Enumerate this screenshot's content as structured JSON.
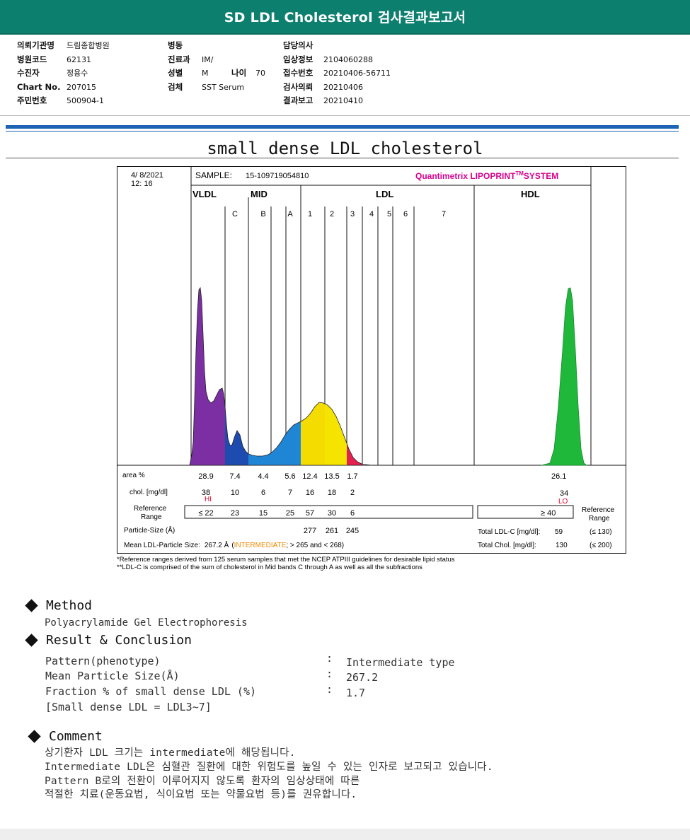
{
  "header": {
    "title": "SD LDL Cholesterol 검사결과보고서"
  },
  "patient": {
    "col1": [
      {
        "label": "의뢰기관명",
        "value": "드림종합병원"
      },
      {
        "label": "병원코드",
        "value": "62131"
      },
      {
        "label": "수진자",
        "value": "정용수"
      },
      {
        "label": "Chart No.",
        "value": "207015"
      },
      {
        "label": "주민번호",
        "value": "500904-1"
      }
    ],
    "col2": [
      {
        "label": "병동",
        "value": ""
      },
      {
        "label": "진료과",
        "value": "IM/"
      },
      {
        "label": "성별",
        "value": "M"
      },
      {
        "label": "검체",
        "value": "SST Serum"
      }
    ],
    "age": {
      "label": "나이",
      "value": "70"
    },
    "col3": [
      {
        "label": "담당의사",
        "value": ""
      },
      {
        "label": "임상정보",
        "value": "2104060288"
      },
      {
        "label": "접수번호",
        "value": "20210406-56711"
      },
      {
        "label": "검사의뢰",
        "value": "20210406"
      },
      {
        "label": "결과보고",
        "value": "20210410"
      }
    ]
  },
  "graph_title": "small dense LDL cholesterol",
  "report": {
    "date": "4/  8/2021",
    "time": "12: 16",
    "sample_label": "SAMPLE:",
    "sample_id": "15-109719054810",
    "system": "Quantimetrix LIPOPRINT",
    "system_tm": "TM",
    "system_suffix": "SYSTEM",
    "groups": {
      "vldl": "VLDL",
      "mid": "MID",
      "ldl": "LDL",
      "hdl": "HDL"
    },
    "bands": [
      "C",
      "B",
      "A",
      "1",
      "2",
      "3",
      "4",
      "5",
      "6",
      "7"
    ],
    "row_labels": {
      "area": "area %",
      "chol": "chol. [mg/dl]",
      "ref1": "Reference",
      "ref2": "Range",
      "particle": "Particle-Size (Å)",
      "mean": "Mean LDL-Particle Size:"
    },
    "area_values": [
      "28.9",
      "7.4",
      "4.4",
      "5.6",
      "12.4",
      "13.5",
      "1.7"
    ],
    "hdl_area": "26.1",
    "chol_values": [
      "38",
      "10",
      "6",
      "7",
      "16",
      "18",
      "2"
    ],
    "vldl_flag": "HI",
    "hdl_chol": "34",
    "hdl_flag": "LO",
    "ref_values": [
      "≤ 22",
      "23",
      "15",
      "25",
      "57",
      "30",
      "6"
    ],
    "hdl_ref": "≥ 40",
    "ref_right1": "Reference",
    "ref_right2": "Range",
    "particle_values": [
      "277",
      "261",
      "245"
    ],
    "total_ldl_label": "Total LDL-C [mg/dl]:",
    "total_ldl_value": "59",
    "total_ldl_ref": "(≤ 130)",
    "mean_value": "267.2 Å",
    "mean_class": "INTERMEDIATE",
    "mean_range_pre": "(",
    "mean_range": "; > 265 and < 268)",
    "total_chol_label": "Total Chol. [mg/dl]:",
    "total_chol_value": "130",
    "total_chol_ref": "(≤ 200)",
    "footnote1": "*Reference ranges derived from 125 serum samples that met the NCEP ATPIII guidelines for desirable lipid status",
    "footnote2": "**LDL-C is comprised of the sum of cholesterol in Mid bands C through A as well as all the subfractions",
    "colors": {
      "vldl": "#7b2fa3",
      "midc": "#1e4bb0",
      "midba": "#1f86d6",
      "ldl1": "#f5dc00",
      "ldl2": "#f4e400",
      "ldl3": "#e4204f",
      "hdl": "#1fb83a",
      "brand": "#d4008c"
    }
  },
  "method": {
    "heading": "Method",
    "text": "Polyacrylamide Gel Electrophoresis"
  },
  "result": {
    "heading": "Result & Conclusion",
    "rows": [
      {
        "label": "Pattern(phenotype)",
        "value": "Intermediate type"
      },
      {
        "label": "Mean Particle Size(Å)",
        "value": "267.2"
      },
      {
        "label": "Fraction % of small dense LDL (%)",
        "value": "1.7"
      }
    ],
    "note": "[Small dense LDL = LDL3~7]",
    "colon": ":"
  },
  "comment": {
    "heading": "Comment",
    "lines": [
      "상기환자 LDL 크기는 intermediate에 해당됩니다.",
      "Intermediate LDL은 심혈관 질환에 대한 위험도를 높일 수 있는 인자로 보고되고 있습니다.",
      "Pattern B로의 전환이 이루어지지 않도록 환자의 임상상태에 따른",
      "적절한 치료(운동요법, 식이요법 또는 약물요법 등)를 권유합니다."
    ]
  }
}
